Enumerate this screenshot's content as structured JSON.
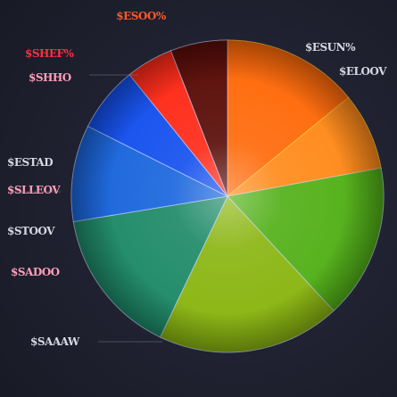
{
  "chart_data": {
    "type": "pie",
    "title": "",
    "start_angle_deg": 0,
    "direction": "clockwise",
    "slices": [
      {
        "label": "$ESUN%",
        "value": 14.1,
        "color": "#ff6a0a",
        "label_color": "#d7d8e2",
        "sub": "",
        "label_pos": "top-right",
        "label_side": "right"
      },
      {
        "label": "$ELOOV",
        "value": 8.0,
        "color": "#ff8a1a",
        "label_color": "#d7d8e2",
        "sub": "",
        "label_pos": "right",
        "label_side": "left"
      },
      {
        "label": "",
        "value": 16.0,
        "color": "#52b018",
        "label_color": "#d7d8e2",
        "sub": "",
        "label_pos": "right",
        "label_side": "left"
      },
      {
        "label": "",
        "value": 19.0,
        "color": "#8ab511",
        "label_color": "#d7d8e2",
        "sub": "",
        "label_pos": "bottom",
        "label_side": "left"
      },
      {
        "label": "$STOOV",
        "value": 15.3,
        "color": "#1e8a68",
        "label_color": "#d7d8e2",
        "sub": "",
        "label_pos": "left",
        "label_side": "right"
      },
      {
        "label": "$ESTAD",
        "value": 10.0,
        "color": "#1a66dd",
        "label_color": "#d7d8e2",
        "sub": "",
        "label_pos": "left",
        "label_side": "right"
      },
      {
        "label": "$SHHO",
        "value": 6.8,
        "color": "#1450ee",
        "label_color": "#ff9fb8",
        "sub": "",
        "label_pos": "top-left",
        "label_side": "right"
      },
      {
        "label": "$SHEF%",
        "value": 4.9,
        "color": "#ff2a18",
        "label_color": "#ff3040",
        "sub": "",
        "label_pos": "top-left",
        "label_side": "right"
      },
      {
        "label": "$ESOO%",
        "value": 5.9,
        "color": "#5a0d08",
        "label_color": "#ff5a28",
        "sub": "",
        "label_pos": "top",
        "label_side": "middle"
      }
    ],
    "extra_labels": [
      {
        "text": "$SLLEOV",
        "color": "#ff9fb8",
        "pos": "left",
        "side": "right"
      },
      {
        "text": "$SADOO",
        "color": "#ff9fb8",
        "pos": "left",
        "side": "right"
      },
      {
        "text": "$SAAAW",
        "color": "#d7d8e2",
        "pos": "bottom-left",
        "side": "right"
      }
    ],
    "legend": "none",
    "grid": false
  }
}
